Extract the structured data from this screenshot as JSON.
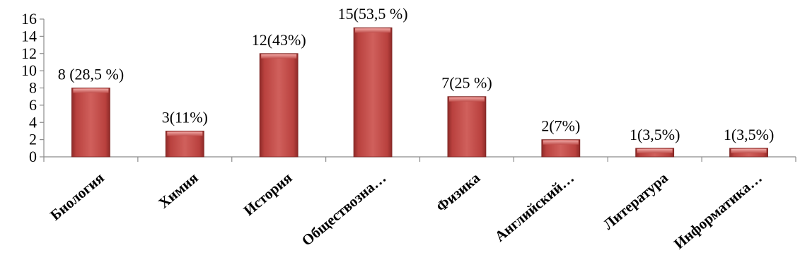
{
  "chart_data": {
    "type": "bar",
    "categories": [
      "Биология",
      "Химия",
      "История",
      "Обществозна…",
      "Физика",
      "Английский…",
      "Литература",
      "Информатика…"
    ],
    "values": [
      8,
      3,
      12,
      15,
      7,
      2,
      1,
      1
    ],
    "data_labels": [
      "8 (28,5 %)",
      "3(11%)",
      "12(43%)",
      "15(53,5 %)",
      "7(25 %)",
      "2(7%)",
      "1(3,5%)",
      "1(3,5%)"
    ],
    "y_ticks": [
      "0",
      "2",
      "4",
      "6",
      "8",
      "10",
      "12",
      "14",
      "16"
    ],
    "ylim": [
      0,
      16
    ],
    "title": "",
    "xlabel": "",
    "ylabel": "",
    "grid": false,
    "legend": false,
    "bar_color": "#c0504d"
  }
}
